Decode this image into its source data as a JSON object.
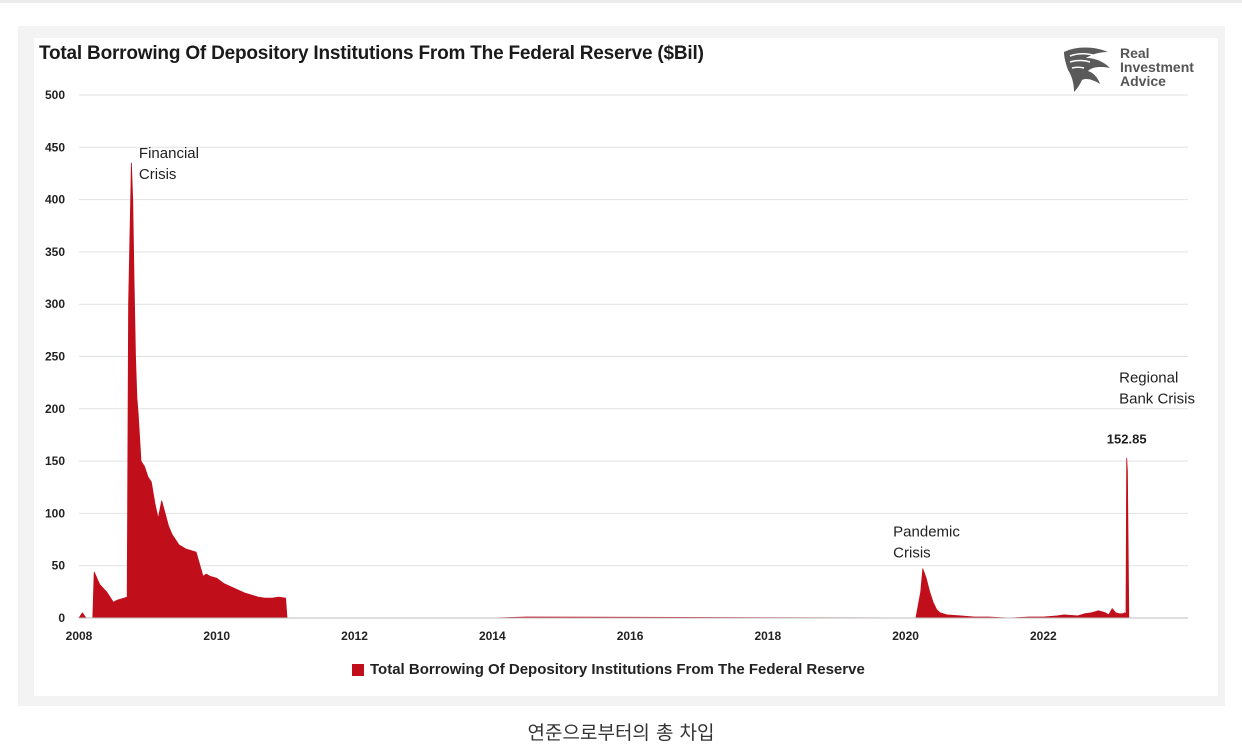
{
  "chart_data": {
    "type": "area",
    "title": "Total Borrowing Of Depository Institutions From The Federal Reserve ($Bil)",
    "series": [
      {
        "name": "Total Borrowing Of Depository Institutions From The Federal Reserve",
        "color": "#c00e1b",
        "x": [
          2008.0,
          2008.05,
          2008.1,
          2008.15,
          2008.2,
          2008.22,
          2008.3,
          2008.4,
          2008.5,
          2008.55,
          2008.6,
          2008.7,
          2008.72,
          2008.76,
          2008.78,
          2008.8,
          2008.82,
          2008.84,
          2008.86,
          2008.9,
          2008.95,
          2009.0,
          2009.05,
          2009.1,
          2009.15,
          2009.2,
          2009.25,
          2009.3,
          2009.35,
          2009.4,
          2009.45,
          2009.5,
          2009.55,
          2009.6,
          2009.7,
          2009.8,
          2009.85,
          2009.9,
          2010.0,
          2010.1,
          2010.2,
          2010.3,
          2010.4,
          2010.5,
          2010.6,
          2010.7,
          2010.8,
          2010.9,
          2011.0,
          2011.02,
          2011.05,
          2014.0,
          2014.5,
          2020.0,
          2020.15,
          2020.22,
          2020.25,
          2020.3,
          2020.35,
          2020.4,
          2020.45,
          2020.5,
          2020.6,
          2020.8,
          2021.0,
          2021.2,
          2021.5,
          2021.8,
          2022.0,
          2022.2,
          2022.3,
          2022.5,
          2022.6,
          2022.7,
          2022.8,
          2022.9,
          2022.95,
          2023.0,
          2023.05,
          2023.1,
          2023.15,
          2023.18,
          2023.2,
          2023.21,
          2023.22,
          2023.24
        ],
        "values": [
          0,
          5,
          0,
          0,
          0,
          44,
          32,
          25,
          15,
          17,
          18,
          20,
          300,
          435,
          400,
          320,
          250,
          210,
          195,
          150,
          145,
          135,
          130,
          110,
          95,
          112,
          100,
          88,
          80,
          75,
          70,
          68,
          66,
          65,
          63,
          40,
          42,
          40,
          38,
          33,
          30,
          27,
          24,
          22,
          20,
          19,
          19,
          20,
          19,
          0,
          0,
          0,
          1,
          0,
          0,
          25,
          47,
          38,
          25,
          15,
          8,
          5,
          3,
          2,
          1,
          1,
          0,
          1,
          1,
          2,
          3,
          2,
          4,
          5,
          7,
          5,
          3,
          9,
          5,
          4,
          4,
          5,
          4,
          152.85,
          140,
          0
        ],
        "ylim": [
          0,
          500
        ],
        "yticks": [
          0,
          50,
          100,
          150,
          200,
          250,
          300,
          350,
          400,
          450,
          500
        ],
        "xlim": [
          2008,
          2024.1
        ],
        "xticks": [
          2008,
          2010,
          2012,
          2014,
          2016,
          2018,
          2020,
          2022
        ]
      }
    ],
    "annotations": [
      {
        "id": "financial",
        "lines": [
          "Financial",
          "Crisis"
        ],
        "x": 2008.87,
        "y": 440
      },
      {
        "id": "pandemic",
        "lines": [
          "Pandemic",
          "Crisis"
        ],
        "x": 2019.82,
        "y": 78
      },
      {
        "id": "regional",
        "lines": [
          "Regional",
          "Bank Crisis"
        ],
        "x": 2023.1,
        "y": 225
      },
      {
        "id": "peak",
        "lines": [
          "152.85"
        ],
        "x": 2023.21,
        "y": 167
      }
    ],
    "legend": "bottom-center"
  },
  "logo": {
    "lines": [
      "Real",
      "Investment",
      "Advice"
    ]
  },
  "caption": "연준으로부터의 총 차입"
}
